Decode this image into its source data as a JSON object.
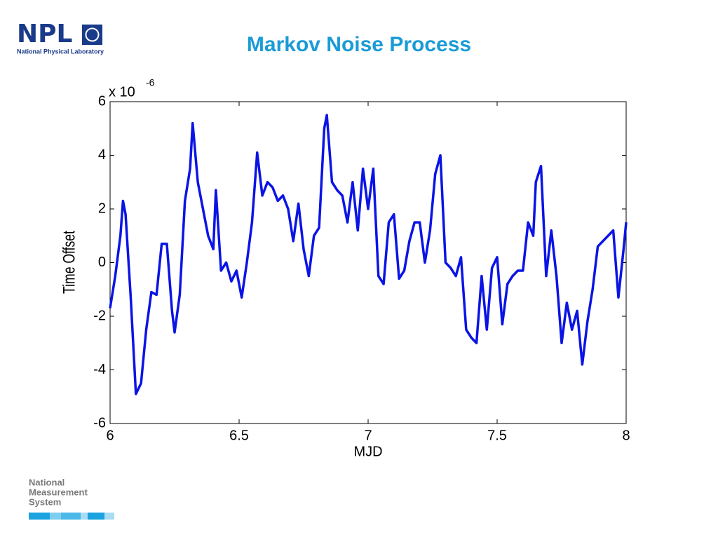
{
  "branding": {
    "logo": "NPL",
    "organisation": "National Physical Laboratory",
    "footer": [
      "National",
      "Measurement",
      "System"
    ]
  },
  "chart_data": {
    "type": "line",
    "title": "Markov Noise Process",
    "x_label": "MJD",
    "y_label": "Time Offset",
    "y_multiplier": "x 10",
    "y_multiplier_exponent": "-6",
    "x": [
      6.0,
      6.02,
      6.04,
      6.05,
      6.06,
      6.08,
      6.1,
      6.12,
      6.14,
      6.16,
      6.18,
      6.2,
      6.22,
      6.24,
      6.25,
      6.27,
      6.29,
      6.31,
      6.32,
      6.34,
      6.36,
      6.38,
      6.4,
      6.41,
      6.43,
      6.45,
      6.47,
      6.49,
      6.51,
      6.53,
      6.55,
      6.57,
      6.59,
      6.61,
      6.63,
      6.65,
      6.67,
      6.69,
      6.71,
      6.73,
      6.75,
      6.77,
      6.79,
      6.81,
      6.83,
      6.84,
      6.86,
      6.88,
      6.9,
      6.92,
      6.94,
      6.96,
      6.98,
      7.0,
      7.02,
      7.04,
      7.06,
      7.08,
      7.1,
      7.12,
      7.14,
      7.16,
      7.18,
      7.2,
      7.22,
      7.24,
      7.26,
      7.28,
      7.3,
      7.32,
      7.34,
      7.36,
      7.38,
      7.4,
      7.42,
      7.44,
      7.46,
      7.48,
      7.5,
      7.52,
      7.54,
      7.56,
      7.58,
      7.6,
      7.62,
      7.64,
      7.65,
      7.67,
      7.69,
      7.71,
      7.73,
      7.75,
      7.77,
      7.79,
      7.81,
      7.83,
      7.85,
      7.87,
      7.89,
      7.91,
      7.93,
      7.95,
      7.97,
      7.99,
      8.0
    ],
    "series": [
      {
        "name": "Time Offset",
        "color": "#0a14e6",
        "values": [
          -1.7,
          -0.5,
          1.0,
          2.3,
          1.8,
          -1.3,
          -4.9,
          -4.5,
          -2.5,
          -1.1,
          -1.2,
          0.7,
          0.7,
          -1.8,
          -2.6,
          -1.2,
          2.3,
          3.5,
          5.2,
          3.0,
          2.0,
          1.0,
          0.5,
          2.7,
          -0.3,
          0.0,
          -0.7,
          -0.3,
          -1.3,
          0.0,
          1.5,
          4.1,
          2.5,
          3.0,
          2.8,
          2.3,
          2.5,
          2.0,
          0.8,
          2.2,
          0.5,
          -0.5,
          1.0,
          1.3,
          5.0,
          5.5,
          3.0,
          2.7,
          2.5,
          1.5,
          3.0,
          1.2,
          3.5,
          2.0,
          3.5,
          -0.5,
          -0.8,
          1.5,
          1.8,
          -0.6,
          -0.3,
          0.8,
          1.5,
          1.5,
          0.0,
          1.2,
          3.3,
          4.0,
          0.0,
          -0.2,
          -0.5,
          0.2,
          -2.5,
          -2.8,
          -3.0,
          -0.5,
          -2.5,
          -0.2,
          0.2,
          -2.3,
          -0.8,
          -0.5,
          -0.3,
          -0.3,
          1.5,
          1.0,
          3.0,
          3.6,
          -0.5,
          1.2,
          -0.5,
          -3.0,
          -1.5,
          -2.5,
          -1.8,
          -3.8,
          -2.2,
          -1.0,
          0.6,
          0.8,
          1.0,
          1.2,
          -1.3,
          0.5,
          1.5
        ]
      }
    ],
    "xlim": [
      6,
      8
    ],
    "xticks": [
      6,
      6.5,
      7,
      7.5,
      8
    ],
    "ylim": [
      -6,
      6
    ],
    "yticks": [
      -6,
      -4,
      -2,
      0,
      2,
      4,
      6
    ]
  }
}
